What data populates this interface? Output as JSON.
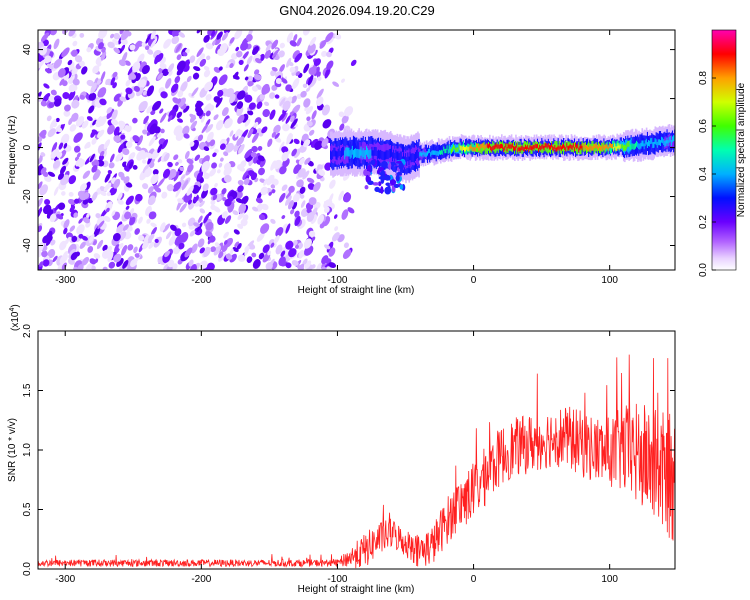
{
  "title": "GN04.2026.094.19.20.C29",
  "chart_data": [
    {
      "type": "heatmap",
      "xlabel": "Height of straight line (km)",
      "ylabel": "Frequency (Hz)",
      "xlim": [
        -320,
        148
      ],
      "ylim": [
        -50,
        48
      ],
      "x_ticks": [
        -300,
        -200,
        -100,
        0,
        100
      ],
      "x_tick_labels": [
        "-300",
        "-200",
        "-100",
        "0",
        "100"
      ],
      "y_ticks": [
        -40,
        -20,
        0,
        20,
        40
      ],
      "y_tick_labels": [
        "-40",
        "-20",
        "0",
        "20",
        "40"
      ],
      "noise_region": {
        "x_range": [
          -320,
          -88
        ],
        "description": "scattered purple noise"
      },
      "signal_band": {
        "x": [
          -105,
          -90,
          -75,
          -60,
          -50,
          -40,
          -30,
          -20,
          -10,
          0,
          20,
          50,
          80,
          100,
          120,
          148
        ],
        "center_freq": [
          -3,
          -2,
          -2,
          -3,
          -5,
          -3,
          -2,
          -1,
          0,
          0,
          0,
          0,
          0,
          0,
          1,
          3
        ],
        "peak_amplitude": [
          0.3,
          0.45,
          0.4,
          0.35,
          0.35,
          0.4,
          0.45,
          0.55,
          0.7,
          0.85,
          0.95,
          0.95,
          0.9,
          0.85,
          0.5,
          0.4
        ]
      },
      "colorbar": {
        "label": "Normalized spectral amplitude",
        "range": [
          0,
          1
        ],
        "ticks": [
          0.0,
          0.2,
          0.4,
          0.6,
          0.8
        ],
        "tick_labels": [
          "0.0",
          "0.2",
          "0.4",
          "0.6",
          "0.8"
        ],
        "colors": [
          "#ffffff",
          "#d8b8ff",
          "#9b30ff",
          "#5a00ff",
          "#0000ff",
          "#00c8ff",
          "#00ff80",
          "#80ff00",
          "#ffff00",
          "#ff8000",
          "#ff0000",
          "#ff00aa"
        ]
      }
    },
    {
      "type": "line",
      "xlabel": "Height of straight line (km)",
      "ylabel": "SNR (10 * v/v)",
      "multiplier_label": "(x10",
      "multiplier_exp": "4",
      "xlim": [
        -320,
        148
      ],
      "ylim": [
        0,
        2.0
      ],
      "x_ticks": [
        -300,
        -200,
        -100,
        0,
        100
      ],
      "x_tick_labels": [
        "-300",
        "-200",
        "-100",
        "0",
        "100"
      ],
      "y_ticks": [
        0.0,
        0.5,
        1.0,
        1.5,
        2.0
      ],
      "y_tick_labels": [
        "0.0",
        "0.5",
        "1.0",
        "1.5",
        "2.0"
      ],
      "color": "#ff2020",
      "trend_x": [
        -320,
        -100,
        -80,
        -70,
        -60,
        -50,
        -40,
        -30,
        -20,
        -10,
        0,
        10,
        20,
        30,
        40,
        50,
        60,
        70,
        80,
        90,
        100,
        110,
        120,
        130,
        140,
        148
      ],
      "trend_y": [
        0.05,
        0.05,
        0.15,
        0.25,
        0.3,
        0.22,
        0.15,
        0.2,
        0.4,
        0.55,
        0.65,
        0.8,
        0.95,
        1.02,
        1.05,
        1.08,
        1.12,
        1.1,
        1.05,
        1.0,
        0.98,
        1.0,
        0.95,
        0.9,
        0.8,
        0.75
      ],
      "noise_amp_x": [
        -320,
        -100,
        -80,
        -50,
        0,
        50,
        100,
        120,
        148
      ],
      "noise_amp_y": [
        0.03,
        0.03,
        0.15,
        0.12,
        0.25,
        0.25,
        0.3,
        0.45,
        0.55
      ]
    }
  ]
}
